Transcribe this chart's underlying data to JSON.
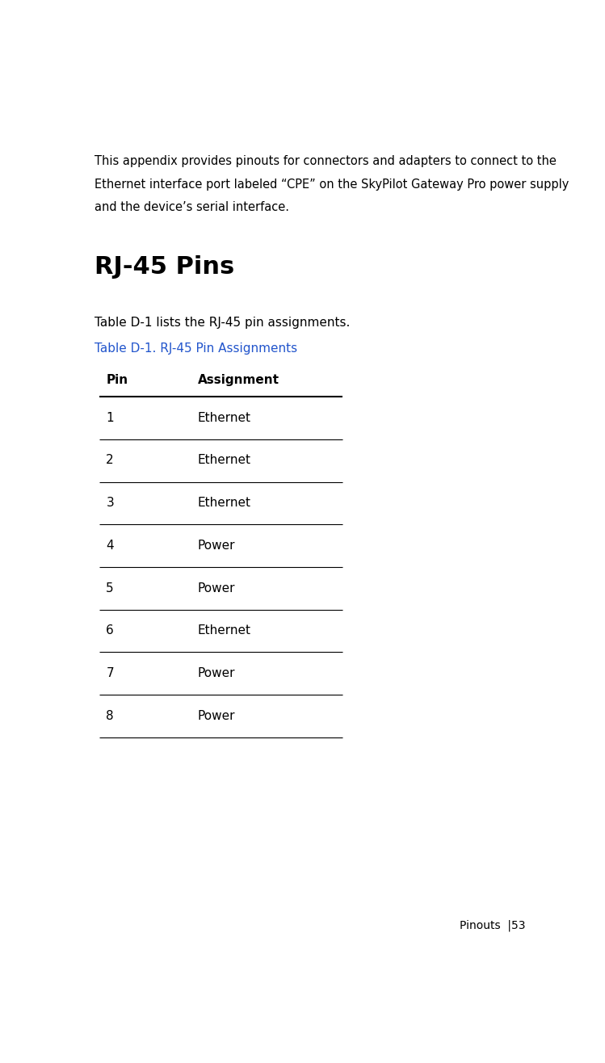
{
  "bg_color": "#ffffff",
  "intro_lines": [
    "This appendix provides pinouts for connectors and adapters to connect to the",
    "Ethernet interface port labeled “CPE” on the SkyPilot Gateway Pro power supply",
    "and the device’s serial interface."
  ],
  "section_heading": "RJ-45 Pins",
  "body_text": "Table D-1 lists the RJ-45 pin assignments.",
  "table_caption": "Table D-1. RJ-45 Pin Assignments",
  "table_caption_color": "#2255cc",
  "col_headers": [
    "Pin",
    "Assignment"
  ],
  "rows": [
    [
      "1",
      "Ethernet"
    ],
    [
      "2",
      "Ethernet"
    ],
    [
      "3",
      "Ethernet"
    ],
    [
      "4",
      "Power"
    ],
    [
      "5",
      "Power"
    ],
    [
      "6",
      "Ethernet"
    ],
    [
      "7",
      "Power"
    ],
    [
      "8",
      "Power"
    ]
  ],
  "footer_text": "Pinouts  |53",
  "text_color": "#000000"
}
